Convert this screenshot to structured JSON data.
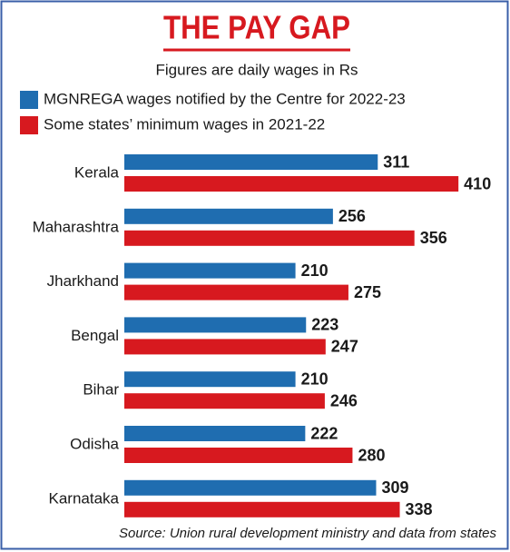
{
  "chart_data": {
    "type": "bar",
    "orientation": "horizontal",
    "title": "THE PAY GAP",
    "subtitle": "Figures are daily wages in Rs",
    "categories": [
      "Kerala",
      "Maharashtra",
      "Jharkhand",
      "Bengal",
      "Bihar",
      "Odisha",
      "Karnataka"
    ],
    "series": [
      {
        "name": "MGNREGA wages notified by the Centre for 2022-23",
        "color": "#1f6db0",
        "values": [
          311,
          256,
          210,
          223,
          210,
          222,
          309
        ]
      },
      {
        "name": "Some states’ minimum wages in 2021-22",
        "color": "#d7191f",
        "values": [
          410,
          356,
          275,
          247,
          246,
          280,
          338
        ]
      }
    ],
    "source": "Source: Union rural development ministry and data from states"
  }
}
